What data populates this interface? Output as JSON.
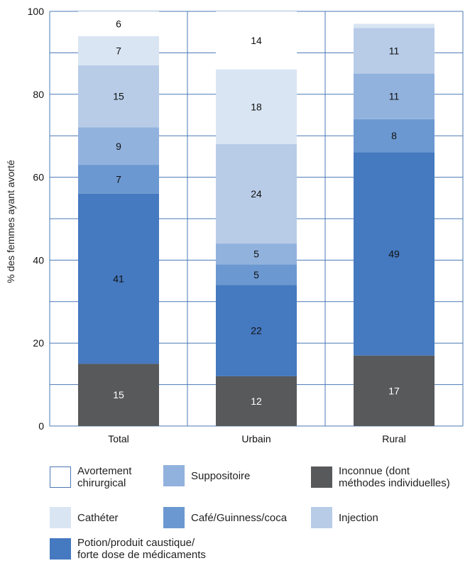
{
  "chart_data": {
    "type": "bar",
    "stacked": true,
    "categories": [
      "Total",
      "Urbain",
      "Rural"
    ],
    "ylabel": "% des femmes ayant avorté",
    "ylim": [
      0,
      100
    ],
    "yticks": [
      "0",
      "20",
      "40",
      "60",
      "80",
      "100"
    ],
    "grid": true,
    "legend_position": "bottom",
    "series": [
      {
        "name": "Inconnue (dont\nméthodes individuelles)",
        "values": [
          15,
          12,
          17
        ],
        "labels": [
          "15",
          "12",
          "17"
        ],
        "color": "#58595b",
        "label_color": "#ffffff"
      },
      {
        "name": "Potion/produit caustique/\nforte dose de médicaments",
        "values": [
          41,
          22,
          49
        ],
        "labels": [
          "41",
          "22",
          "49"
        ],
        "color": "#4579c0",
        "label_color": "#111111"
      },
      {
        "name": "Café/Guinness/coca",
        "values": [
          7,
          5,
          8
        ],
        "labels": [
          "7",
          "5",
          "8"
        ],
        "color": "#6b98d0",
        "label_color": "#111111"
      },
      {
        "name": "Suppositoire",
        "values": [
          9,
          5,
          11
        ],
        "labels": [
          "9",
          "5",
          "11"
        ],
        "color": "#92b2de",
        "label_color": "#111111"
      },
      {
        "name": "Injection",
        "values": [
          15,
          24,
          11
        ],
        "labels": [
          "15",
          "24",
          "11"
        ],
        "color": "#b8cce8",
        "label_color": "#111111"
      },
      {
        "name": "Cathéter",
        "values": [
          7,
          18,
          1
        ],
        "labels": [
          "7",
          "18",
          ""
        ],
        "color": "#d9e5f2",
        "label_color": "#111111"
      },
      {
        "name": "Avortement\nchirurgical",
        "values": [
          6,
          14,
          0
        ],
        "labels": [
          "6",
          "14",
          ""
        ],
        "color": "#ffffff",
        "label_color": "#111111"
      }
    ]
  },
  "legend_order": [
    6,
    3,
    0,
    5,
    2,
    4,
    1
  ]
}
